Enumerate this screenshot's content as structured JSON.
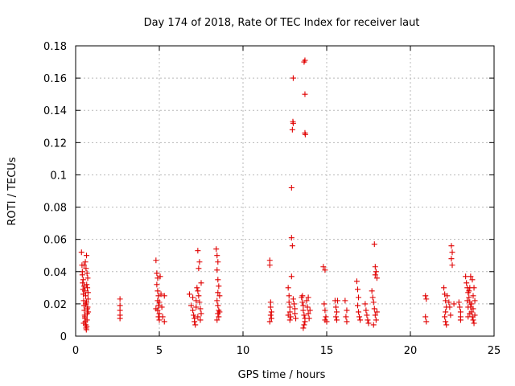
{
  "chart_data": {
    "type": "scatter",
    "title": "Day 174 of 2018, Rate Of TEC Index for receiver laut",
    "xlabel": "GPS time / hours",
    "ylabel": "ROTI / TECUs",
    "xlim": [
      0,
      25
    ],
    "ylim": [
      0,
      0.18
    ],
    "xticks": [
      0,
      5,
      10,
      15,
      20,
      25
    ],
    "xtick_labels": [
      "0",
      "5",
      "10",
      "15",
      "20",
      "25"
    ],
    "yticks": [
      0,
      0.02,
      0.04,
      0.06,
      0.08,
      0.1,
      0.12,
      0.14,
      0.16,
      0.18
    ],
    "ytick_labels": [
      "0",
      "0.02",
      "0.04",
      "0.06",
      "0.08",
      "0.1",
      "0.12",
      "0.14",
      "0.16",
      "0.18"
    ],
    "grid": true,
    "marker": "plus",
    "marker_color": "#e00000",
    "series": [
      {
        "name": "ROTI",
        "points": [
          [
            0.35,
            0.052
          ],
          [
            0.38,
            0.044
          ],
          [
            0.4,
            0.038
          ],
          [
            0.42,
            0.033
          ],
          [
            0.44,
            0.029
          ],
          [
            0.46,
            0.026
          ],
          [
            0.48,
            0.022
          ],
          [
            0.5,
            0.019
          ],
          [
            0.52,
            0.016
          ],
          [
            0.54,
            0.013
          ],
          [
            0.56,
            0.011
          ],
          [
            0.58,
            0.009
          ],
          [
            0.6,
            0.007
          ],
          [
            0.62,
            0.005
          ],
          [
            0.64,
            0.004
          ],
          [
            0.66,
            0.006
          ],
          [
            0.68,
            0.01
          ],
          [
            0.7,
            0.014
          ],
          [
            0.72,
            0.018
          ],
          [
            0.74,
            0.023
          ],
          [
            0.4,
            0.04
          ],
          [
            0.45,
            0.035
          ],
          [
            0.5,
            0.031
          ],
          [
            0.55,
            0.028
          ],
          [
            0.6,
            0.025
          ],
          [
            0.65,
            0.021
          ],
          [
            0.7,
            0.017
          ],
          [
            0.75,
            0.015
          ],
          [
            0.5,
            0.044
          ],
          [
            0.58,
            0.046
          ],
          [
            0.65,
            0.05
          ],
          [
            0.72,
            0.036
          ],
          [
            0.7,
            0.03
          ],
          [
            0.66,
            0.032
          ],
          [
            0.6,
            0.02
          ],
          [
            0.55,
            0.012
          ],
          [
            0.48,
            0.008
          ],
          [
            0.62,
            0.042
          ],
          [
            0.68,
            0.039
          ],
          [
            0.74,
            0.027
          ],
          [
            2.65,
            0.023
          ],
          [
            2.65,
            0.019
          ],
          [
            2.65,
            0.016
          ],
          [
            2.65,
            0.013
          ],
          [
            2.65,
            0.011
          ],
          [
            4.8,
            0.047
          ],
          [
            4.85,
            0.039
          ],
          [
            4.9,
            0.036
          ],
          [
            4.85,
            0.032
          ],
          [
            4.9,
            0.028
          ],
          [
            4.95,
            0.025
          ],
          [
            4.9,
            0.022
          ],
          [
            4.95,
            0.019
          ],
          [
            4.9,
            0.016
          ],
          [
            5.0,
            0.014
          ],
          [
            4.95,
            0.012
          ],
          [
            5.0,
            0.01
          ],
          [
            5.05,
            0.037
          ],
          [
            5.1,
            0.026
          ],
          [
            5.15,
            0.018
          ],
          [
            5.2,
            0.012
          ],
          [
            4.8,
            0.017
          ],
          [
            5.0,
            0.021
          ],
          [
            5.3,
            0.025
          ],
          [
            5.3,
            0.009
          ],
          [
            6.8,
            0.026
          ],
          [
            6.9,
            0.019
          ],
          [
            7.0,
            0.016
          ],
          [
            7.05,
            0.013
          ],
          [
            7.1,
            0.011
          ],
          [
            7.1,
            0.009
          ],
          [
            7.15,
            0.007
          ],
          [
            7.2,
            0.022
          ],
          [
            7.25,
            0.03
          ],
          [
            7.3,
            0.028
          ],
          [
            7.35,
            0.025
          ],
          [
            7.4,
            0.021
          ],
          [
            7.45,
            0.017
          ],
          [
            7.5,
            0.014
          ],
          [
            7.35,
            0.042
          ],
          [
            7.4,
            0.046
          ],
          [
            7.3,
            0.053
          ],
          [
            7.5,
            0.033
          ],
          [
            7.45,
            0.01
          ],
          [
            7.0,
            0.024
          ],
          [
            7.2,
            0.018
          ],
          [
            7.3,
            0.012
          ],
          [
            8.4,
            0.054
          ],
          [
            8.45,
            0.05
          ],
          [
            8.5,
            0.046
          ],
          [
            8.45,
            0.041
          ],
          [
            8.5,
            0.035
          ],
          [
            8.55,
            0.031
          ],
          [
            8.5,
            0.027
          ],
          [
            8.45,
            0.022
          ],
          [
            8.5,
            0.019
          ],
          [
            8.55,
            0.016
          ],
          [
            8.5,
            0.014
          ],
          [
            8.55,
            0.012
          ],
          [
            8.45,
            0.01
          ],
          [
            8.6,
            0.015
          ],
          [
            8.6,
            0.025
          ],
          [
            11.6,
            0.047
          ],
          [
            11.6,
            0.044
          ],
          [
            11.65,
            0.021
          ],
          [
            11.65,
            0.018
          ],
          [
            11.7,
            0.015
          ],
          [
            11.65,
            0.013
          ],
          [
            11.7,
            0.011
          ],
          [
            11.6,
            0.009
          ],
          [
            12.7,
            0.03
          ],
          [
            12.75,
            0.025
          ],
          [
            12.75,
            0.021
          ],
          [
            12.8,
            0.018
          ],
          [
            12.8,
            0.015
          ],
          [
            12.85,
            0.012
          ],
          [
            12.8,
            0.01
          ],
          [
            12.9,
            0.061
          ],
          [
            12.95,
            0.056
          ],
          [
            12.9,
            0.092
          ],
          [
            12.95,
            0.128
          ],
          [
            13.0,
            0.132
          ],
          [
            12.98,
            0.133
          ],
          [
            13.0,
            0.16
          ],
          [
            12.9,
            0.037
          ],
          [
            13.0,
            0.023
          ],
          [
            13.05,
            0.02
          ],
          [
            13.1,
            0.017
          ],
          [
            13.1,
            0.014
          ],
          [
            13.15,
            0.011
          ],
          [
            12.7,
            0.013
          ],
          [
            13.5,
            0.024
          ],
          [
            13.55,
            0.021
          ],
          [
            13.6,
            0.019
          ],
          [
            13.6,
            0.016
          ],
          [
            13.65,
            0.013
          ],
          [
            13.7,
            0.011
          ],
          [
            13.7,
            0.009
          ],
          [
            13.65,
            0.007
          ],
          [
            13.6,
            0.005
          ],
          [
            13.65,
            0.17
          ],
          [
            13.7,
            0.171
          ],
          [
            13.7,
            0.15
          ],
          [
            13.7,
            0.126
          ],
          [
            13.72,
            0.125
          ],
          [
            13.8,
            0.022
          ],
          [
            13.85,
            0.018
          ],
          [
            13.9,
            0.014
          ],
          [
            13.95,
            0.011
          ],
          [
            13.9,
            0.024
          ],
          [
            14.0,
            0.016
          ],
          [
            13.55,
            0.025
          ],
          [
            14.8,
            0.043
          ],
          [
            14.9,
            0.041
          ],
          [
            14.85,
            0.02
          ],
          [
            14.9,
            0.016
          ],
          [
            14.95,
            0.012
          ],
          [
            14.9,
            0.01
          ],
          [
            15.0,
            0.009
          ],
          [
            15.5,
            0.022
          ],
          [
            15.55,
            0.018
          ],
          [
            15.6,
            0.015
          ],
          [
            15.55,
            0.012
          ],
          [
            15.6,
            0.01
          ],
          [
            15.65,
            0.022
          ],
          [
            16.1,
            0.022
          ],
          [
            16.2,
            0.016
          ],
          [
            16.15,
            0.012
          ],
          [
            16.2,
            0.009
          ],
          [
            16.8,
            0.034
          ],
          [
            16.85,
            0.029
          ],
          [
            16.9,
            0.024
          ],
          [
            16.85,
            0.019
          ],
          [
            16.9,
            0.015
          ],
          [
            16.95,
            0.012
          ],
          [
            17.0,
            0.01
          ],
          [
            17.3,
            0.02
          ],
          [
            17.35,
            0.016
          ],
          [
            17.4,
            0.013
          ],
          [
            17.45,
            0.01
          ],
          [
            17.5,
            0.008
          ],
          [
            17.7,
            0.028
          ],
          [
            17.75,
            0.024
          ],
          [
            17.8,
            0.021
          ],
          [
            17.85,
            0.017
          ],
          [
            17.9,
            0.013
          ],
          [
            17.95,
            0.01
          ],
          [
            17.85,
            0.057
          ],
          [
            17.9,
            0.043
          ],
          [
            17.95,
            0.04
          ],
          [
            17.9,
            0.038
          ],
          [
            18.0,
            0.036
          ],
          [
            18.0,
            0.015
          ],
          [
            17.8,
            0.007
          ],
          [
            20.9,
            0.025
          ],
          [
            20.95,
            0.023
          ],
          [
            20.9,
            0.012
          ],
          [
            20.95,
            0.009
          ],
          [
            22.0,
            0.03
          ],
          [
            22.05,
            0.026
          ],
          [
            22.1,
            0.022
          ],
          [
            22.15,
            0.018
          ],
          [
            22.1,
            0.015
          ],
          [
            22.05,
            0.012
          ],
          [
            22.1,
            0.009
          ],
          [
            22.15,
            0.007
          ],
          [
            22.2,
            0.025
          ],
          [
            22.3,
            0.021
          ],
          [
            22.35,
            0.018
          ],
          [
            22.4,
            0.013
          ],
          [
            22.45,
            0.056
          ],
          [
            22.5,
            0.052
          ],
          [
            22.45,
            0.048
          ],
          [
            22.5,
            0.044
          ],
          [
            22.6,
            0.02
          ],
          [
            22.9,
            0.021
          ],
          [
            22.95,
            0.018
          ],
          [
            23.0,
            0.015
          ],
          [
            23.0,
            0.012
          ],
          [
            23.0,
            0.01
          ],
          [
            23.3,
            0.037
          ],
          [
            23.35,
            0.033
          ],
          [
            23.4,
            0.03
          ],
          [
            23.45,
            0.027
          ],
          [
            23.5,
            0.024
          ],
          [
            23.55,
            0.021
          ],
          [
            23.6,
            0.018
          ],
          [
            23.65,
            0.015
          ],
          [
            23.7,
            0.012
          ],
          [
            23.75,
            0.01
          ],
          [
            23.8,
            0.008
          ],
          [
            23.6,
            0.037
          ],
          [
            23.7,
            0.035
          ],
          [
            23.5,
            0.028
          ],
          [
            23.4,
            0.022
          ],
          [
            23.45,
            0.018
          ],
          [
            23.55,
            0.014
          ],
          [
            23.65,
            0.02
          ],
          [
            23.75,
            0.025
          ],
          [
            23.8,
            0.03
          ],
          [
            23.75,
            0.017
          ],
          [
            23.85,
            0.013
          ],
          [
            23.85,
            0.022
          ],
          [
            23.55,
            0.03
          ],
          [
            23.45,
            0.012
          ]
        ]
      }
    ]
  }
}
